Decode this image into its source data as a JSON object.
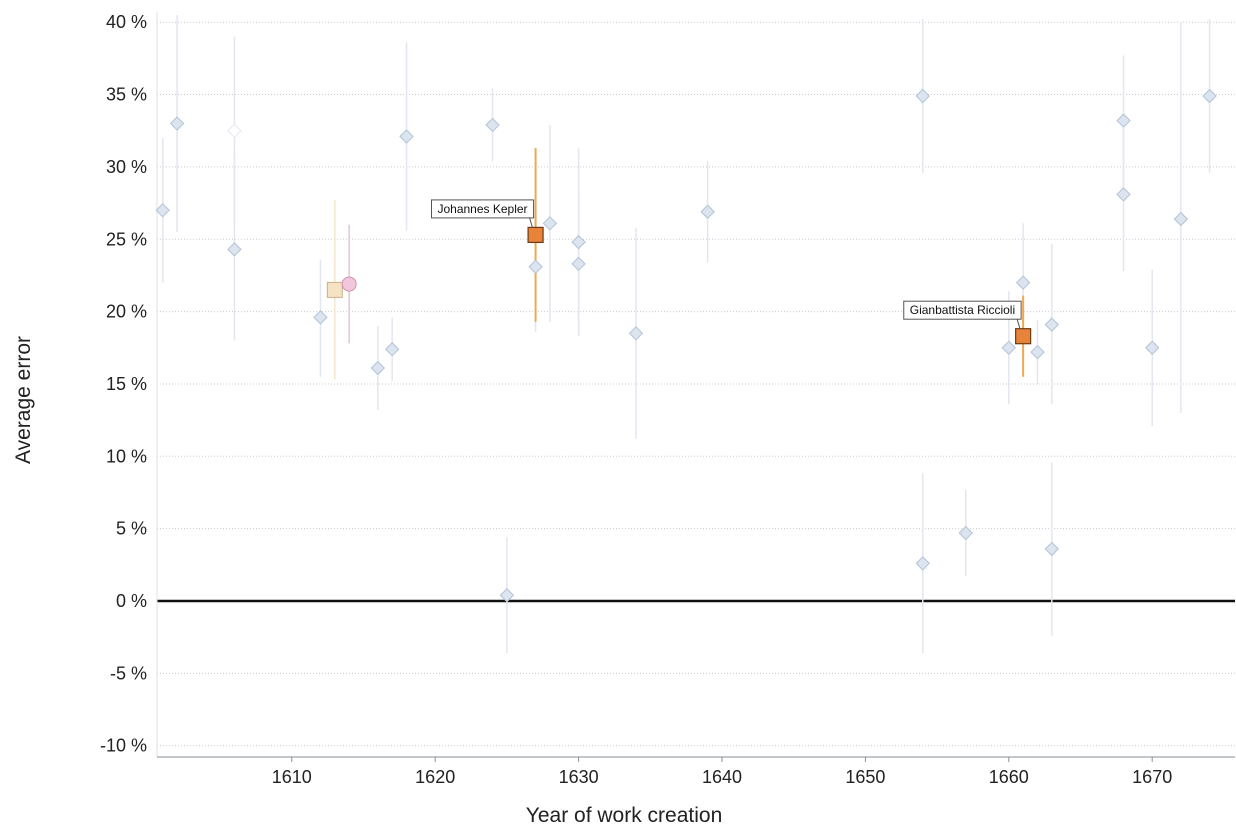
{
  "chart_data": {
    "type": "scatter",
    "title": "",
    "xlabel": "Year of work creation",
    "ylabel": "Average error",
    "xlim": [
      1601,
      1676
    ],
    "ylim": [
      -11,
      41
    ],
    "xticks": [
      1610,
      1620,
      1630,
      1640,
      1650,
      1660,
      1670
    ],
    "yticks": [
      -10,
      -5,
      0,
      5,
      10,
      15,
      20,
      25,
      30,
      35,
      40
    ],
    "xtick_labels": [
      "1610",
      "1620",
      "1630",
      "1640",
      "1650",
      "1660",
      "1670"
    ],
    "ytick_labels": [
      "-10 %",
      "-5 %",
      "0 %",
      "5 %",
      "10 %",
      "15 %",
      "20 %",
      "25 %",
      "30 %",
      "35 %",
      "40 %"
    ],
    "grid": "horizontal-dotted",
    "zero_line": true,
    "colors": {
      "marker_fill": "#dbe4ef",
      "marker_stroke": "#b3c3d6",
      "errorbar": "#e3e6f0",
      "highlight_fill": "#e8833a",
      "highlight_stroke": "#6e3b12",
      "highlight_errorbar": "#f0a850",
      "square_cream_fill": "#f6e3c4",
      "square_cream_stroke": "#c9b28a",
      "circle_pink_fill": "#f2c7dc",
      "circle_pink_stroke": "#cf8fb1",
      "zero_line": "#111111",
      "grid": "#c8ccd2"
    },
    "points": [
      {
        "x": 1601,
        "y": 27,
        "lo": 22,
        "hi": 32,
        "shape": "diamond"
      },
      {
        "x": 1602,
        "y": 33,
        "lo": 25.5,
        "hi": 40.5,
        "shape": "diamond"
      },
      {
        "x": 1606,
        "y": 32.5,
        "lo": 26,
        "hi": 39,
        "shape": "diamond-white"
      },
      {
        "x": 1606,
        "y": 24.3,
        "lo": 18,
        "hi": 31,
        "shape": "diamond"
      },
      {
        "x": 1612,
        "y": 19.6,
        "lo": 15.5,
        "hi": 23.6,
        "shape": "diamond"
      },
      {
        "x": 1613,
        "y": 21.5,
        "lo": 15.3,
        "hi": 27.7,
        "shape": "square-cream"
      },
      {
        "x": 1614,
        "y": 21.9,
        "lo": 17.8,
        "hi": 26,
        "shape": "circle-pink"
      },
      {
        "x": 1616,
        "y": 16.1,
        "lo": 13.2,
        "hi": 19,
        "shape": "diamond"
      },
      {
        "x": 1617,
        "y": 17.4,
        "lo": 15.2,
        "hi": 19.6,
        "shape": "diamond"
      },
      {
        "x": 1618,
        "y": 32.1,
        "lo": 25.6,
        "hi": 38.6,
        "shape": "diamond"
      },
      {
        "x": 1624,
        "y": 32.9,
        "lo": 30.4,
        "hi": 35.4,
        "shape": "diamond"
      },
      {
        "x": 1625,
        "y": 0.4,
        "lo": -3.6,
        "hi": 4.4,
        "shape": "diamond"
      },
      {
        "x": 1627,
        "y": 23.1,
        "lo": 18.6,
        "hi": 27.6,
        "shape": "diamond"
      },
      {
        "x": 1627,
        "y": 25.3,
        "lo": 19.3,
        "hi": 31.3,
        "shape": "square-highlight",
        "label": "Johannes Kepler"
      },
      {
        "x": 1628,
        "y": 26.1,
        "lo": 19.3,
        "hi": 32.9,
        "shape": "diamond"
      },
      {
        "x": 1630,
        "y": 24.8,
        "lo": 18.3,
        "hi": 31.3,
        "shape": "diamond"
      },
      {
        "x": 1630,
        "y": 23.3,
        "lo": 18.3,
        "hi": 28.3,
        "shape": "diamond"
      },
      {
        "x": 1634,
        "y": 18.5,
        "lo": 11.2,
        "hi": 25.8,
        "shape": "diamond"
      },
      {
        "x": 1639,
        "y": 26.9,
        "lo": 23.4,
        "hi": 30.4,
        "shape": "diamond"
      },
      {
        "x": 1654,
        "y": 34.9,
        "lo": 29.6,
        "hi": 40.2,
        "shape": "diamond"
      },
      {
        "x": 1654,
        "y": 2.6,
        "lo": -3.6,
        "hi": 8.8,
        "shape": "diamond"
      },
      {
        "x": 1657,
        "y": 4.7,
        "lo": 1.7,
        "hi": 7.7,
        "shape": "diamond"
      },
      {
        "x": 1660,
        "y": 17.5,
        "lo": 13.6,
        "hi": 21.4,
        "shape": "diamond"
      },
      {
        "x": 1661,
        "y": 22,
        "lo": 17.9,
        "hi": 26.1,
        "shape": "diamond"
      },
      {
        "x": 1661,
        "y": 18.3,
        "lo": 15.5,
        "hi": 21.1,
        "shape": "square-highlight",
        "label": "Gianbattista Riccioli"
      },
      {
        "x": 1662,
        "y": 17.2,
        "lo": 15,
        "hi": 19.4,
        "shape": "diamond"
      },
      {
        "x": 1663,
        "y": 19.1,
        "lo": 13.6,
        "hi": 24.7,
        "shape": "diamond"
      },
      {
        "x": 1663,
        "y": 3.6,
        "lo": -2.4,
        "hi": 9.6,
        "shape": "diamond"
      },
      {
        "x": 1668,
        "y": 33.2,
        "lo": 28.7,
        "hi": 37.7,
        "shape": "diamond"
      },
      {
        "x": 1668,
        "y": 28.1,
        "lo": 22.8,
        "hi": 33.4,
        "shape": "diamond"
      },
      {
        "x": 1670,
        "y": 17.5,
        "lo": 12.1,
        "hi": 22.9,
        "shape": "diamond"
      },
      {
        "x": 1672,
        "y": 26.4,
        "lo": 13,
        "hi": 40,
        "shape": "diamond"
      },
      {
        "x": 1674,
        "y": 34.9,
        "lo": 29.6,
        "hi": 40.2,
        "shape": "diamond"
      }
    ]
  }
}
